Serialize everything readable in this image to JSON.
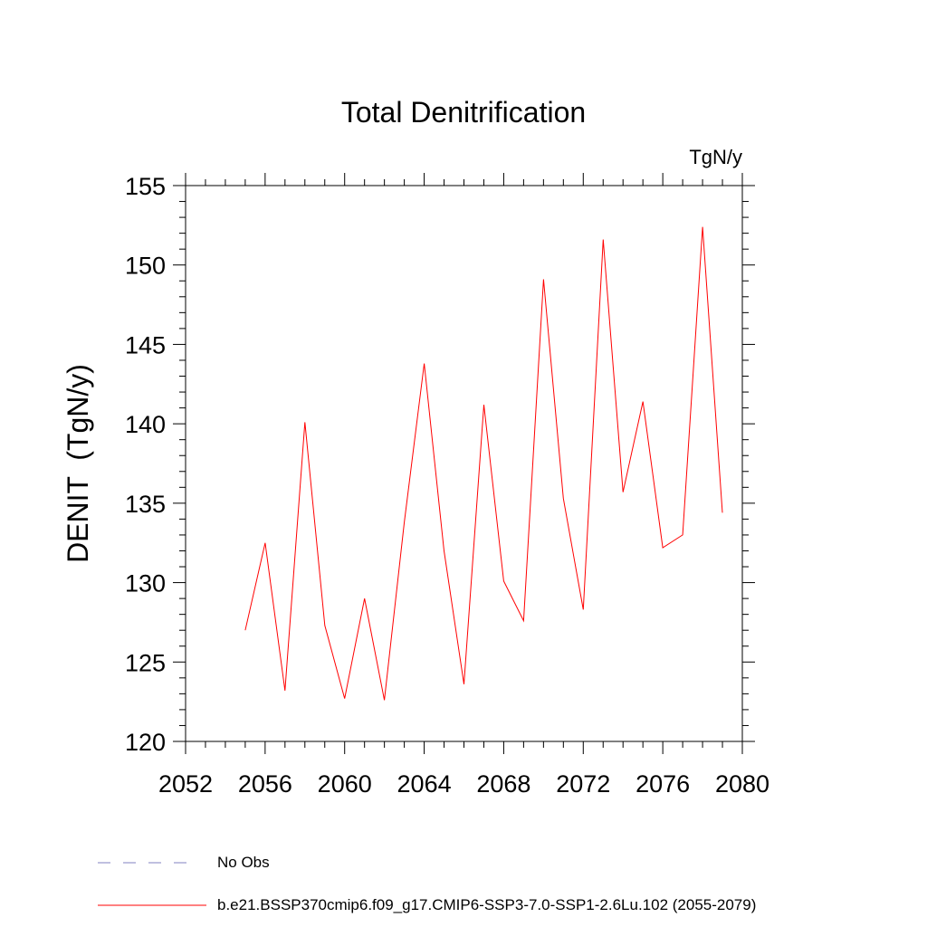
{
  "chart_data": {
    "type": "line",
    "title": "Total Denitrification",
    "units_label": "TgN/y",
    "ylabel": "DENIT  (TgN/y)",
    "xlabel": "",
    "xlim": [
      2052,
      2080
    ],
    "ylim": [
      120,
      155
    ],
    "x_ticks": [
      2052,
      2056,
      2060,
      2064,
      2068,
      2072,
      2076,
      2080
    ],
    "y_ticks": [
      120,
      125,
      130,
      135,
      140,
      145,
      150,
      155
    ],
    "grid": false,
    "series": [
      {
        "name": "b.e21.BSSP370cmip6.f09_g17.CMIP6-SSP3-7.0-SSP1-2.6Lu.102 (2055-2079)",
        "color": "#ff0000",
        "x": [
          2055,
          2056,
          2057,
          2058,
          2059,
          2060,
          2061,
          2062,
          2063,
          2064,
          2065,
          2066,
          2067,
          2068,
          2069,
          2070,
          2071,
          2072,
          2073,
          2074,
          2075,
          2076,
          2077,
          2078,
          2079
        ],
        "y": [
          127.0,
          132.5,
          123.2,
          140.1,
          127.3,
          122.7,
          129.0,
          122.6,
          133.8,
          143.8,
          132.0,
          123.6,
          141.2,
          130.1,
          127.6,
          149.1,
          135.3,
          128.3,
          151.6,
          135.7,
          141.4,
          132.2,
          133.0,
          152.4,
          134.4
        ]
      }
    ],
    "legend": {
      "placement": "bottom-left",
      "entries": [
        {
          "label": "No Obs",
          "style": "dashed",
          "color": "#8080c0"
        },
        {
          "label": "b.e21.BSSP370cmip6.f09_g17.CMIP6-SSP3-7.0-SSP1-2.6Lu.102 (2055-2079)",
          "style": "solid",
          "color": "#ff0000"
        }
      ]
    }
  }
}
